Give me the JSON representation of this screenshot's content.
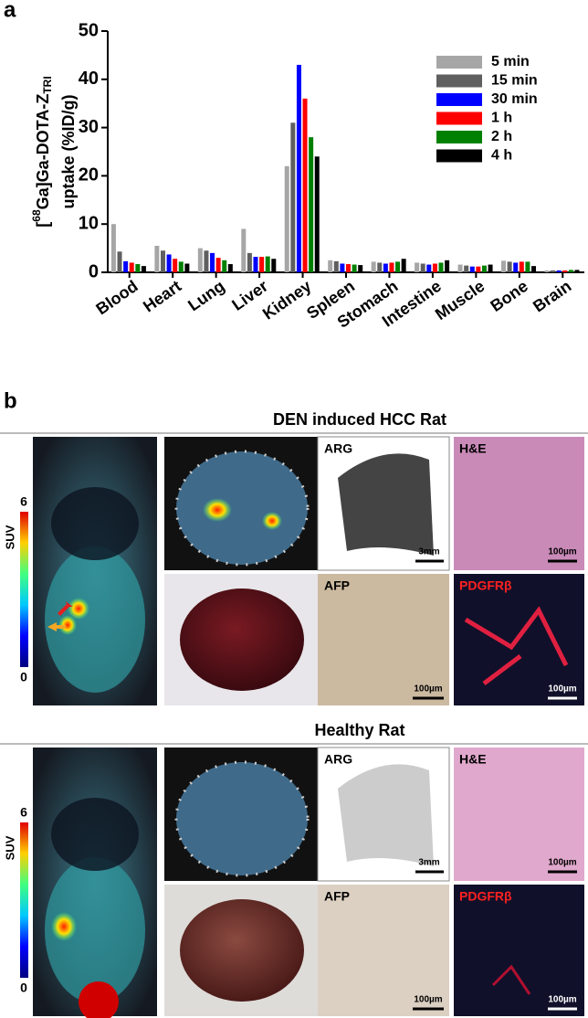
{
  "chart_data": {
    "type": "bar",
    "panel_label": "a",
    "ylabel_parts": [
      "[",
      "68",
      "Ga]Ga-DOTA-Z",
      "TRI"
    ],
    "ylabel_line2": "uptake (%ID/g)",
    "categories": [
      "Blood",
      "Heart",
      "Lung",
      "Liver",
      "Kidney",
      "Spleen",
      "Stomach",
      "Intestine",
      "Muscle",
      "Bone",
      "Brain"
    ],
    "ylim": [
      0,
      50
    ],
    "yticks": [
      0,
      10,
      20,
      30,
      40,
      50
    ],
    "legend": "top-right",
    "series": [
      {
        "name": "5 min",
        "color": "#a6a6a6",
        "values": [
          10,
          5.5,
          5,
          9,
          22,
          2.5,
          2.2,
          2,
          1.6,
          2.4,
          0.4
        ]
      },
      {
        "name": "15 min",
        "color": "#5f5f5f",
        "values": [
          4.3,
          4.5,
          4.5,
          4,
          31,
          2.3,
          2,
          1.8,
          1.4,
          2.2,
          0.4
        ]
      },
      {
        "name": "30 min",
        "color": "#0000ff",
        "values": [
          2.3,
          3.7,
          4,
          3.2,
          43,
          1.8,
          1.8,
          1.6,
          1.2,
          2,
          0.4
        ]
      },
      {
        "name": "1 h",
        "color": "#ff0000",
        "values": [
          2,
          2.8,
          3,
          3.2,
          36,
          1.7,
          2,
          1.8,
          1.2,
          2.2,
          0.4
        ]
      },
      {
        "name": "2 h",
        "color": "#008000",
        "values": [
          1.7,
          2.2,
          2.5,
          3.3,
          28,
          1.6,
          2.2,
          2,
          1.4,
          2.2,
          0.5
        ]
      },
      {
        "name": "4 h",
        "color": "#000000",
        "values": [
          1.3,
          1.8,
          1.7,
          2.8,
          24,
          1.5,
          2.8,
          2.5,
          1.6,
          1.3,
          0.5
        ]
      }
    ]
  },
  "panel_b": {
    "label": "b",
    "sections": [
      {
        "title": "DEN induced HCC Rat",
        "suv_max": "6",
        "suv_min": "0",
        "suv_label": "SUV",
        "arg": "ARG",
        "arg_scale": "3mm",
        "he": "H&E",
        "he_scale": "100µm",
        "afp": "AFP",
        "afp_scale": "100µm",
        "pdgfr": "PDGFRβ",
        "pdgfr_scale": "100µm"
      },
      {
        "title": "Healthy Rat",
        "suv_max": "6",
        "suv_min": "0",
        "suv_label": "SUV",
        "arg": "ARG",
        "arg_scale": "3mm",
        "he": "H&E",
        "he_scale": "100µm",
        "afp": "AFP",
        "afp_scale": "100µm",
        "pdgfr": "PDGFRβ",
        "pdgfr_scale": "100µm"
      }
    ]
  }
}
